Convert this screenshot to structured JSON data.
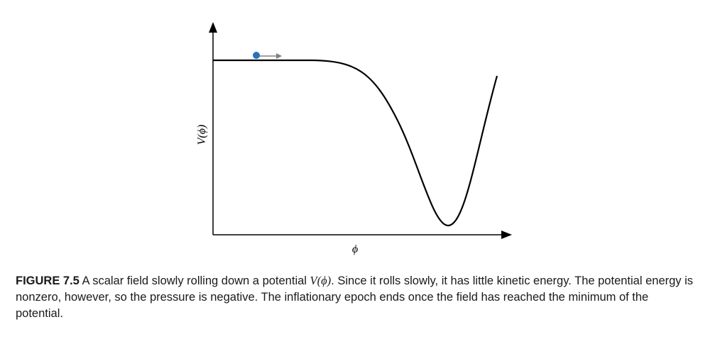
{
  "figure": {
    "y_axis_label": "V(ϕ)",
    "x_axis_label": "ϕ"
  },
  "colors": {
    "axis": "#000000",
    "curve": "#000000",
    "ball": "#2574b8",
    "arrow": "#808080"
  },
  "caption": {
    "label": "FIGURE 7.5",
    "text_before_math": " A scalar field slowly rolling down a potential ",
    "math": "V(ϕ)",
    "text_after_math": ". Since it rolls slowly, it has little kinetic energy. The potential energy is nonzero, however, so the pressure is negative. The inflationary epoch ends once the field has reached the minimum of the potential."
  }
}
